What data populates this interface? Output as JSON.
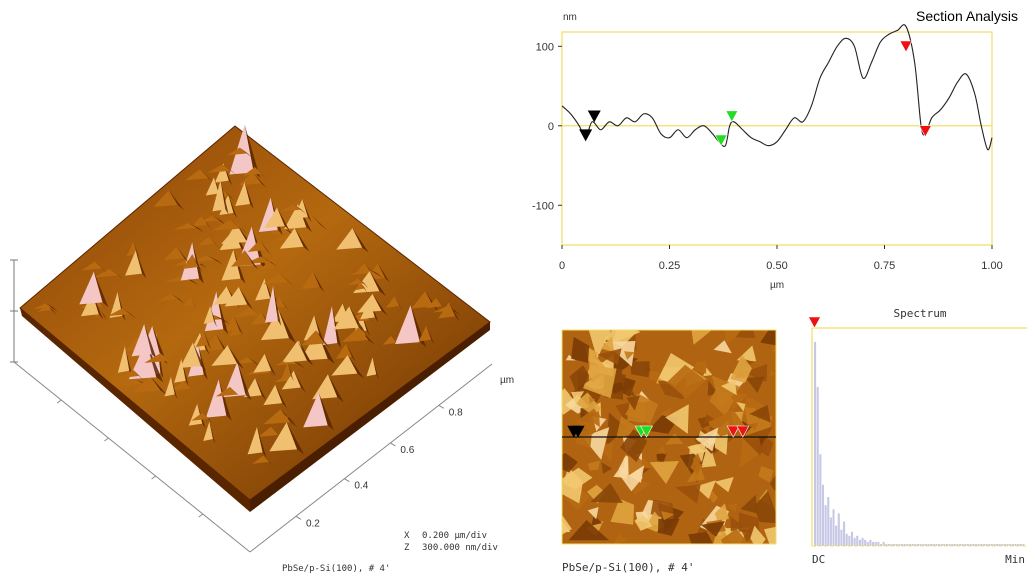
{
  "colors": {
    "frame": "#f0e060",
    "zero_line": "#f0e060",
    "profile": "#222222",
    "marker_black": "#000000",
    "marker_green": "#22dd22",
    "marker_red": "#ee1111",
    "spectrum_bars": "#c8c8e6",
    "surface_dark": "#5a2600",
    "surface_mid": "#b86a10",
    "surface_light": "#f0c070",
    "surface_peak": "#f4c6c6"
  },
  "surface_view": {
    "axis_unit": "µm",
    "depth_ticks": [
      "0.2",
      "0.4",
      "0.6",
      "0.8"
    ],
    "scale_x_label": "X",
    "scale_x_value": "0.200 µm/div",
    "scale_z_label": "Z",
    "scale_z_value": "300.000 nm/div",
    "caption": "PbSe/p-Si(100), # 4'"
  },
  "chart_data": [
    {
      "type": "line",
      "title": "Section Analysis",
      "ylabel": "nm",
      "xlabel": "µm",
      "xlim": [
        0,
        1.0
      ],
      "ylim": [
        -150,
        150
      ],
      "xticks": [
        "0",
        "0.25",
        "0.50",
        "0.75",
        "1.00"
      ],
      "yticks": [
        "100",
        "0",
        "-100"
      ],
      "grid": false,
      "series": [
        {
          "x": [
            0.0,
            0.02,
            0.04,
            0.055,
            0.07,
            0.09,
            0.11,
            0.13,
            0.15,
            0.17,
            0.19,
            0.21,
            0.23,
            0.25,
            0.27,
            0.29,
            0.31,
            0.33,
            0.35,
            0.365,
            0.38,
            0.39,
            0.4,
            0.42,
            0.44,
            0.46,
            0.48,
            0.5,
            0.52,
            0.54,
            0.56,
            0.58,
            0.6,
            0.62,
            0.64,
            0.66,
            0.68,
            0.7,
            0.72,
            0.74,
            0.76,
            0.78,
            0.8,
            0.82,
            0.835,
            0.845,
            0.86,
            0.88,
            0.9,
            0.92,
            0.94,
            0.96,
            0.975,
            0.99,
            1.0
          ],
          "y": [
            25,
            15,
            0,
            -15,
            5,
            -5,
            5,
            0,
            10,
            5,
            15,
            10,
            -10,
            -15,
            -5,
            -15,
            -5,
            0,
            -10,
            -20,
            -25,
            0,
            5,
            -5,
            -15,
            -20,
            -25,
            -20,
            -5,
            10,
            5,
            25,
            60,
            80,
            100,
            110,
            100,
            60,
            80,
            105,
            115,
            120,
            125,
            80,
            0,
            -10,
            10,
            20,
            35,
            55,
            65,
            40,
            0,
            -30,
            -15
          ]
        }
      ],
      "markers": [
        {
          "color": "black",
          "x": 0.055,
          "position": "on-curve"
        },
        {
          "color": "black",
          "x": 0.075,
          "position": "above"
        },
        {
          "color": "green",
          "x": 0.37,
          "position": "on-curve"
        },
        {
          "color": "green",
          "x": 0.395,
          "position": "above"
        },
        {
          "color": "red",
          "x": 0.8,
          "position": "top"
        },
        {
          "color": "red",
          "x": 0.845,
          "position": "on-curve"
        }
      ]
    },
    {
      "type": "bar",
      "title": "Spectrum",
      "x_start_label": "DC",
      "x_end_label": "Min",
      "values": [
        100,
        78,
        45,
        30,
        20,
        24,
        14,
        18,
        10,
        16,
        8,
        12,
        6,
        5,
        7,
        4,
        5,
        3,
        4,
        3,
        2,
        3,
        2,
        2,
        2,
        1,
        2,
        1,
        1,
        1,
        1,
        1,
        1,
        1,
        1,
        1,
        1,
        1,
        1,
        1,
        1,
        1,
        1,
        1,
        1,
        1,
        1,
        1,
        1,
        1,
        1,
        1,
        1,
        1,
        1,
        1,
        1,
        1,
        1,
        1,
        1,
        1,
        1,
        1,
        1,
        1,
        1,
        1,
        1,
        1,
        1,
        1,
        1,
        1,
        1,
        1,
        1,
        1,
        1,
        1
      ],
      "markers": [
        {
          "color": "red",
          "index": 0,
          "position": "top"
        }
      ]
    }
  ],
  "top_image": {
    "caption": "PbSe/p-Si(100), # 4'",
    "markers": [
      {
        "color": "black",
        "x": 0.055
      },
      {
        "color": "black",
        "x": 0.075
      },
      {
        "color": "green",
        "x": 0.37
      },
      {
        "color": "green",
        "x": 0.395
      },
      {
        "color": "red",
        "x": 0.8
      },
      {
        "color": "red",
        "x": 0.845
      }
    ],
    "section_line_y": 0.5
  }
}
